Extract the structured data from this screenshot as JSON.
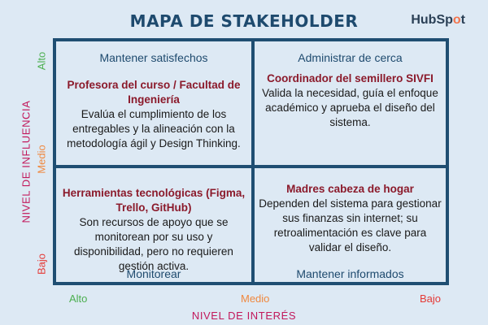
{
  "title": "MAPA DE STAKEHOLDER",
  "logo": {
    "text_main": "HubSp",
    "text_accent": "o",
    "text_end": "t"
  },
  "axes": {
    "y_label": "NIVEL DE INFLUENCIA",
    "x_label": "NIVEL DE INTERÉS",
    "y_ticks": [
      "Alto",
      "Medio",
      "Bajo"
    ],
    "x_ticks": [
      "Alto",
      "Medio",
      "Bajo"
    ]
  },
  "colors": {
    "background": "#dde9f4",
    "grid_border": "#1f4e72",
    "title": "#1e4a6e",
    "stakeholder_name": "#8b1a2b",
    "axis_label": "#c2185b",
    "tick_high": "#4caf50",
    "tick_medium": "#f0883e",
    "tick_low": "#e53935",
    "logo_accent": "#f2754e"
  },
  "quadrants": {
    "top_left": {
      "label": "Mantener satisfechos",
      "name": "Profesora del curso / Facultad de Ingeniería",
      "description": "Evalúa el cumplimiento de los entregables y la alineación con la metodología ágil y Design Thinking."
    },
    "top_right": {
      "label": "Administrar de cerca",
      "name": "Coordinador del semillero SIVFI",
      "description": "Valida la necesidad, guía el enfoque académico y aprueba el diseño del sistema."
    },
    "bottom_left": {
      "label": "Monitorear",
      "name": "Herramientas tecnológicas (Figma, Trello, GitHub)",
      "description": "Son recursos de apoyo que se monitorean por su uso y disponibilidad, pero no requieren gestión activa."
    },
    "bottom_right": {
      "label": "Mantener informados",
      "name": "Madres cabeza de hogar",
      "description": "Dependen del sistema para gestionar sus finanzas sin internet; su retroalimentación es clave para validar el diseño."
    }
  }
}
